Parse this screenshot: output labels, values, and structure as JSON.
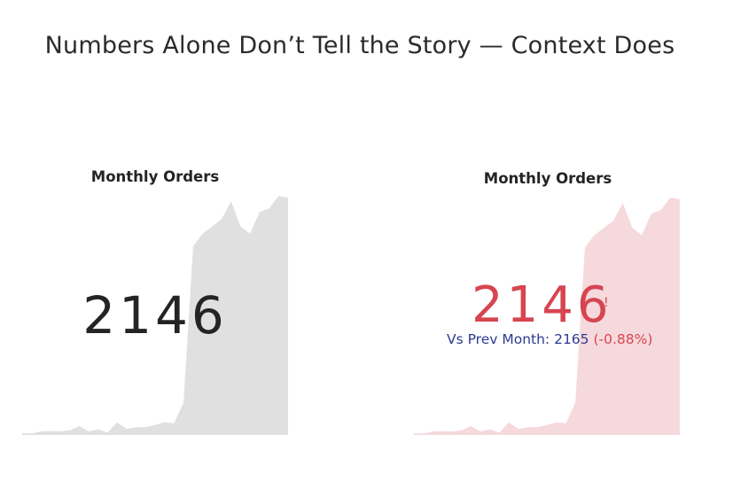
{
  "title": "Numbers Alone Don’t Tell the Story — Context Does",
  "colors": {
    "plain_area": "#e0e0e0",
    "alert_area": "#f6d9dd",
    "alert_text": "#d64550",
    "compare_text": "#2b3a8f",
    "value_text": "#252423"
  },
  "cards": [
    {
      "title": "Monthly Orders",
      "value": "2146"
    },
    {
      "title": "Monthly Orders",
      "value": "2146",
      "alert_mark": "!",
      "comparison": {
        "label": "Vs Prev Month: 2165",
        "delta": "(-0.88%)"
      }
    }
  ],
  "chart_data": [
    {
      "type": "area",
      "title": "Monthly Orders",
      "values": [
        5,
        4,
        10,
        11,
        10,
        13,
        25,
        10,
        16,
        7,
        35,
        17,
        22,
        22,
        28,
        35,
        33,
        90,
        525,
        560,
        580,
        600,
        650,
        580,
        560,
        620,
        630,
        665,
        660
      ],
      "ylim": [
        0,
        680
      ]
    },
    {
      "type": "area",
      "title": "Monthly Orders",
      "values": [
        5,
        4,
        10,
        11,
        10,
        13,
        25,
        10,
        16,
        7,
        35,
        17,
        22,
        22,
        28,
        35,
        33,
        90,
        525,
        560,
        580,
        600,
        650,
        580,
        560,
        620,
        630,
        665,
        660
      ],
      "ylim": [
        0,
        680
      ]
    }
  ]
}
